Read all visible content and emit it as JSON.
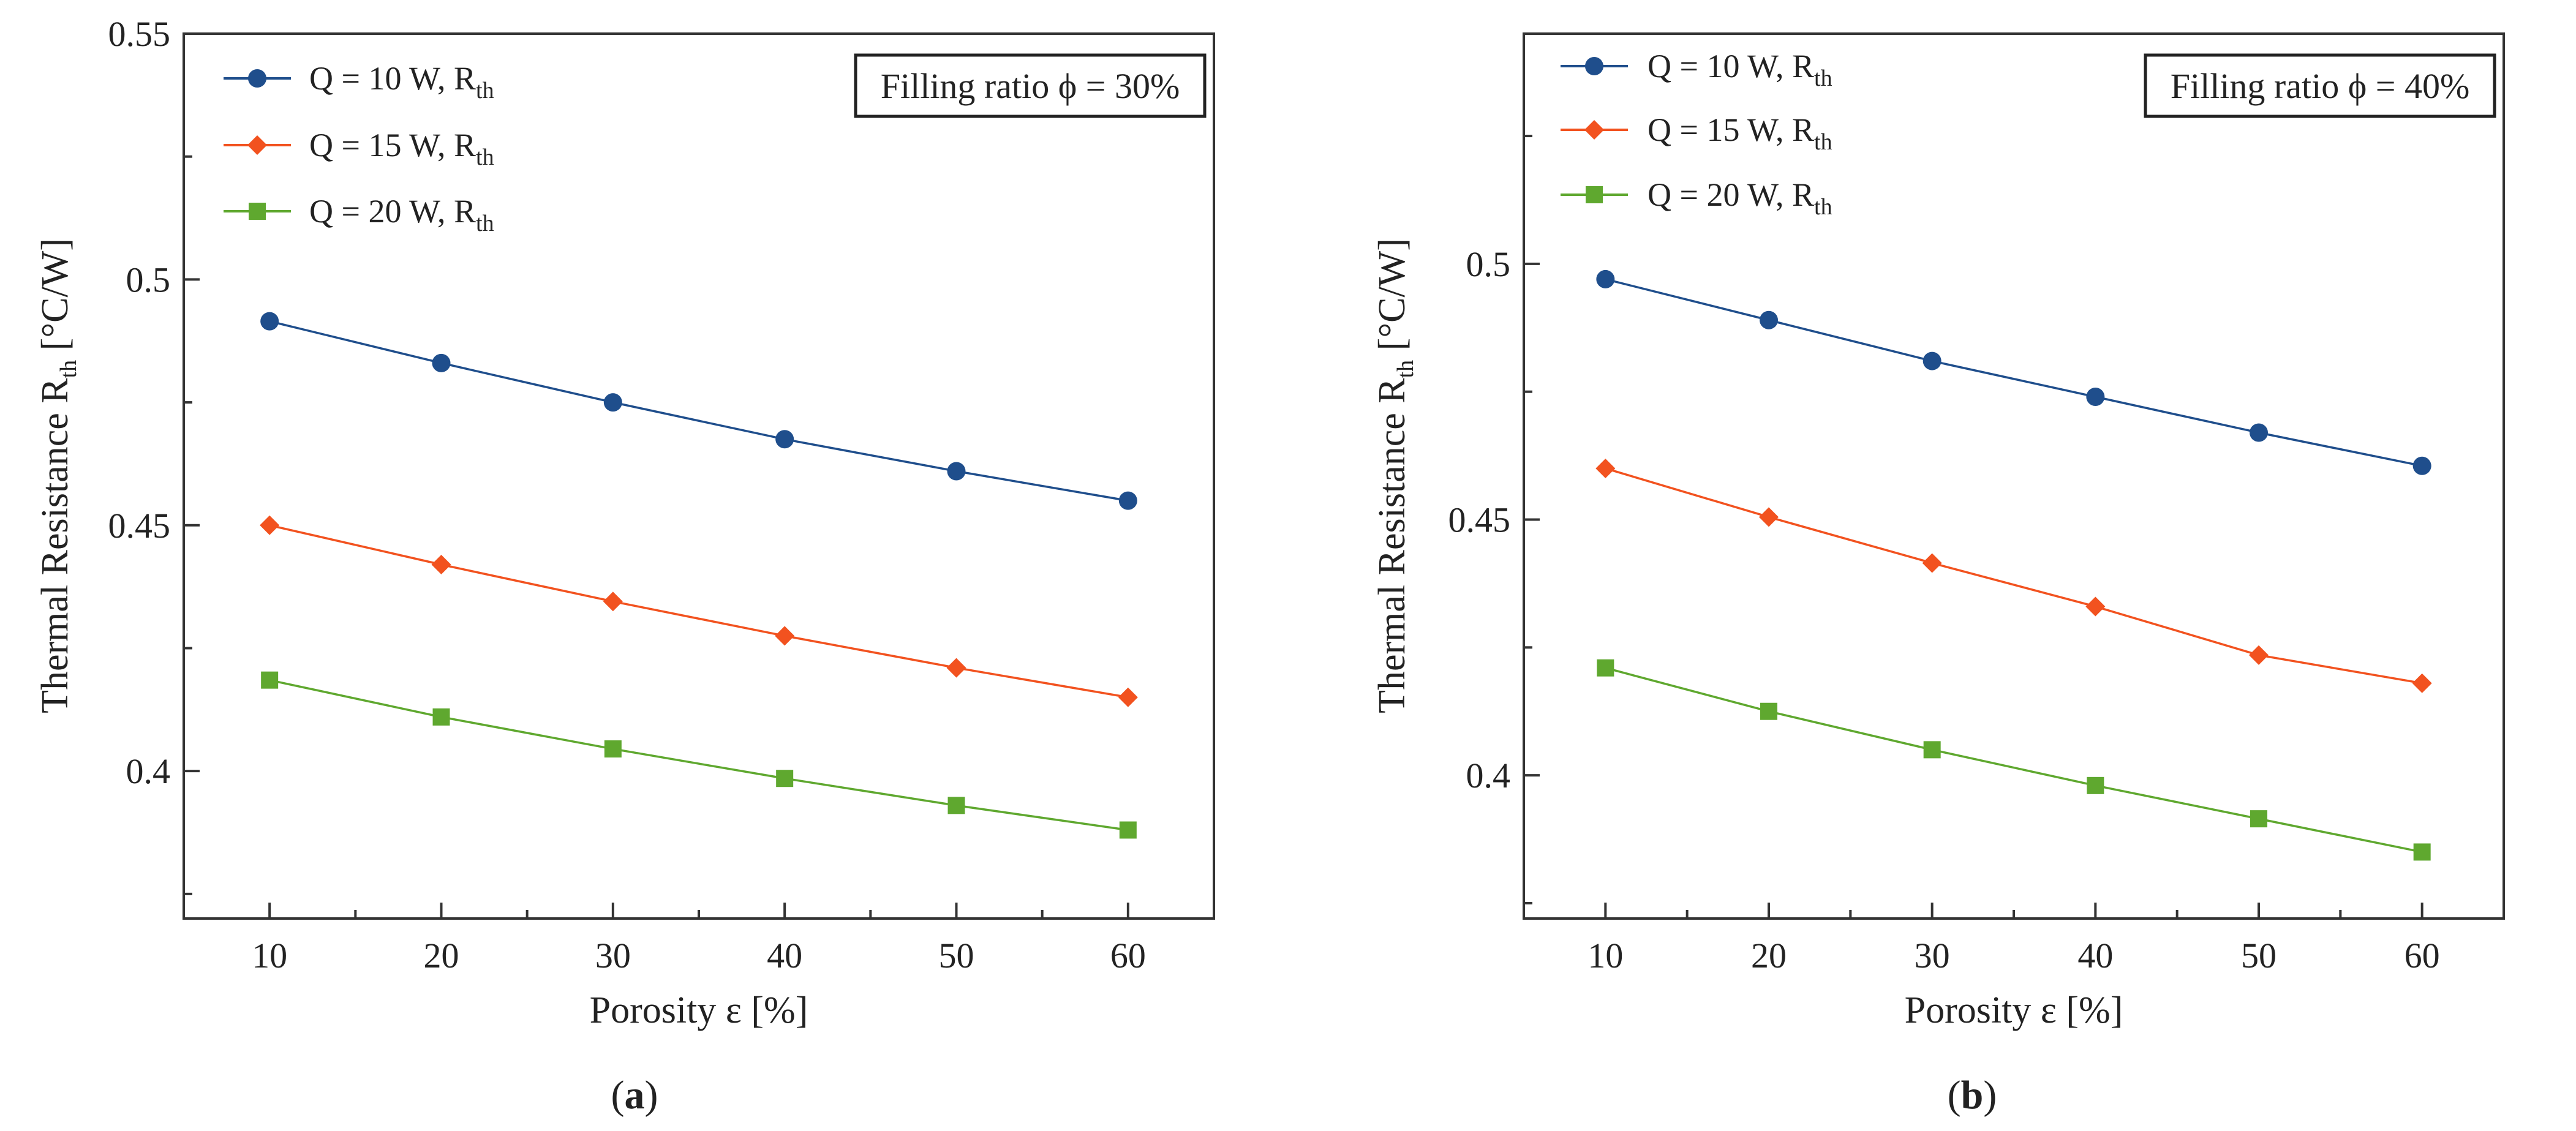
{
  "colors": {
    "Q10": "#1f4e8c",
    "Q15": "#f2521f",
    "Q20": "#5fa82f",
    "axis": "#333333",
    "text": "#222222"
  },
  "chart_data": [
    {
      "type": "line",
      "panel_label_prefix": "(",
      "panel_label_letter": "a",
      "panel_label_suffix": ")",
      "annotation": "Filling ratio ϕ = 30%",
      "xlabel": "Porosity ε [%]",
      "ylabel_main": "Thermal Resistance R",
      "ylabel_sub": "th",
      "ylabel_unit": " [°C/W]",
      "xlim": [
        5,
        65
      ],
      "ylim": [
        0.37,
        0.55
      ],
      "xticks": [
        10,
        20,
        30,
        40,
        50,
        60
      ],
      "xtick_labels": [
        "10",
        "20",
        "30",
        "40",
        "50",
        "60"
      ],
      "yticks": [
        0.4,
        0.45,
        0.5,
        0.55
      ],
      "ytick_labels": [
        "0.4",
        "0.45",
        "0.5",
        "0.55"
      ],
      "ytick_minor": [
        0.375,
        0.425,
        0.475,
        0.525
      ],
      "x": [
        10,
        20,
        30,
        40,
        50,
        60
      ],
      "series": [
        {
          "name": "Q = 10 W, R",
          "name_sub": "th",
          "color_key": "Q10",
          "marker": "circle",
          "values": [
            0.4915,
            0.483,
            0.475,
            0.4675,
            0.461,
            0.455
          ]
        },
        {
          "name": "Q = 15 W, R",
          "name_sub": "th",
          "color_key": "Q15",
          "marker": "diamond",
          "values": [
            0.45,
            0.442,
            0.4345,
            0.4275,
            0.421,
            0.415
          ]
        },
        {
          "name": "Q = 20 W, R",
          "name_sub": "th",
          "color_key": "Q20",
          "marker": "square",
          "values": [
            0.4185,
            0.411,
            0.4045,
            0.3985,
            0.393,
            0.388
          ]
        }
      ]
    },
    {
      "type": "line",
      "panel_label_prefix": "(",
      "panel_label_letter": "b",
      "panel_label_suffix": ")",
      "annotation": "Filling ratio ϕ = 40%",
      "xlabel": "Porosity ε [%]",
      "ylabel_main": "Thermal Resistance R",
      "ylabel_sub": "th",
      "ylabel_unit": " [°C/W]",
      "xlim": [
        5,
        65
      ],
      "ylim": [
        0.372,
        0.545
      ],
      "xticks": [
        10,
        20,
        30,
        40,
        50,
        60
      ],
      "xtick_labels": [
        "10",
        "20",
        "30",
        "40",
        "50",
        "60"
      ],
      "yticks": [
        0.4,
        0.45,
        0.5
      ],
      "ytick_labels": [
        "0.4",
        "0.45",
        "0.5"
      ],
      "ytick_minor": [
        0.375,
        0.425,
        0.475,
        0.525
      ],
      "x": [
        10,
        20,
        30,
        40,
        50,
        60
      ],
      "series": [
        {
          "name": "Q = 10 W, R",
          "name_sub": "th",
          "color_key": "Q10",
          "marker": "circle",
          "values": [
            0.497,
            0.489,
            0.481,
            0.474,
            0.467,
            0.4605
          ]
        },
        {
          "name": "Q = 15 W, R",
          "name_sub": "th",
          "color_key": "Q15",
          "marker": "diamond",
          "values": [
            0.46,
            0.4505,
            0.4415,
            0.433,
            0.4235,
            0.418
          ]
        },
        {
          "name": "Q = 20 W, R",
          "name_sub": "th",
          "color_key": "Q20",
          "marker": "square",
          "values": [
            0.421,
            0.4125,
            0.405,
            0.398,
            0.3915,
            0.385
          ]
        }
      ]
    }
  ]
}
